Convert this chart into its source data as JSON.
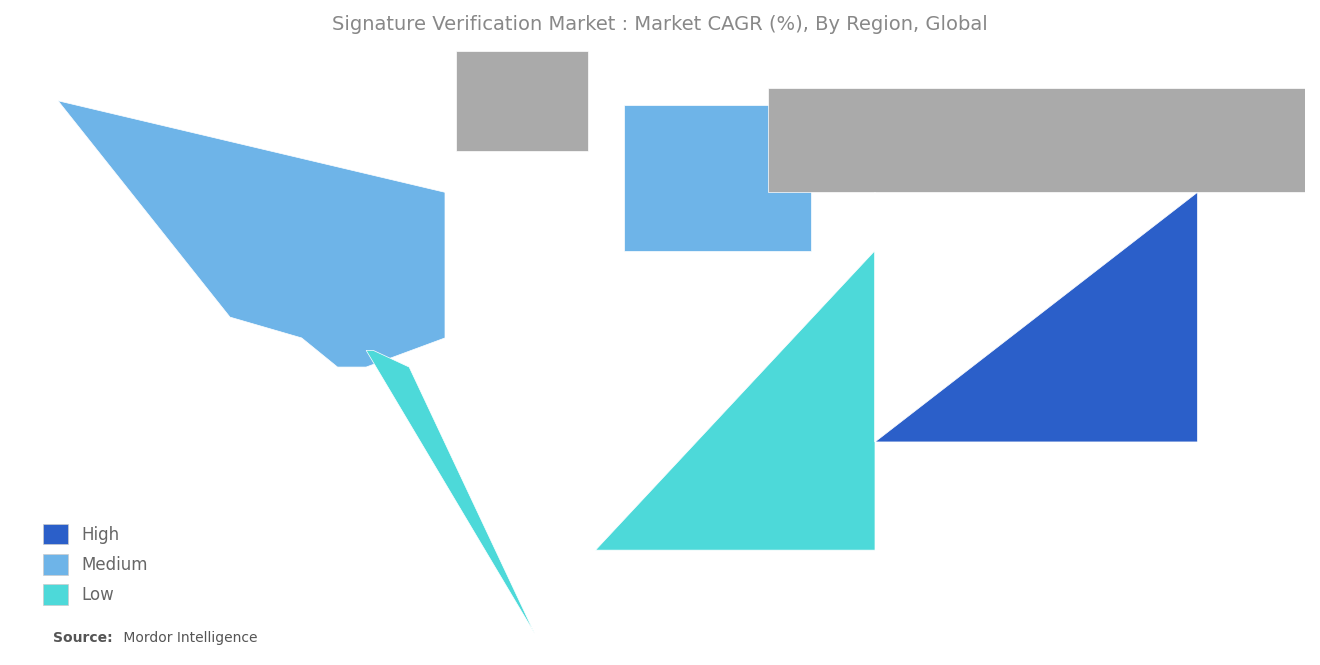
{
  "title": "Signature Verification Market : Market CAGR (%), By Region, Global",
  "title_color": "#888888",
  "title_fontsize": 14,
  "background_color": "#ffffff",
  "legend_items": [
    "High",
    "Medium",
    "Low"
  ],
  "colors": {
    "High": "#2B5FC9",
    "Medium": "#6EB4E8",
    "Low": "#4DD9D9",
    "NoData": "#AAAAAA",
    "ocean": "#ffffff"
  },
  "source_bold": "Source:",
  "source_text": " Mordor Intelligence",
  "source_fontsize": 10
}
